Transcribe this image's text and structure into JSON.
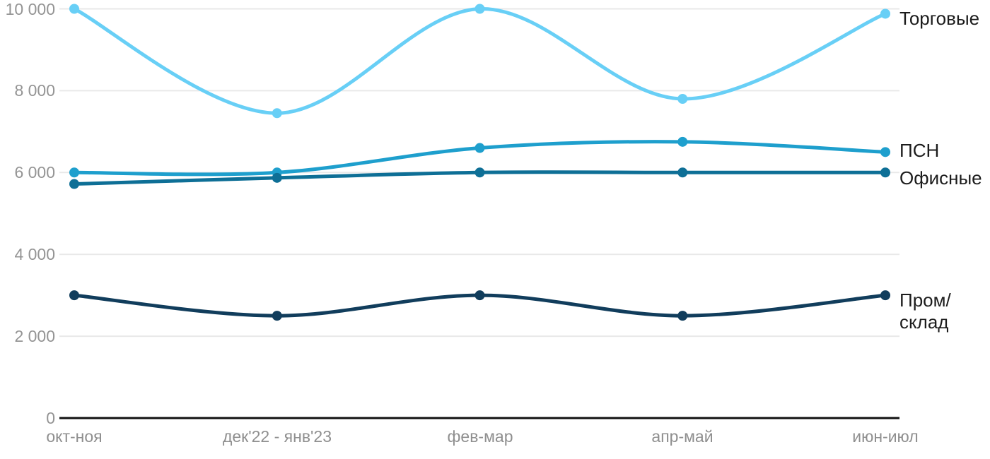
{
  "chart_data": {
    "type": "line",
    "title": "",
    "xlabel": "",
    "ylabel": "",
    "categories": [
      "окт-ноя",
      "дек'22 - янв'23",
      "фев-мар",
      "апр-май",
      "июн-июл"
    ],
    "ytick_labels": [
      "10 000",
      "8 000",
      "6 000",
      "4 000",
      "2 000",
      "0"
    ],
    "ytick_values": [
      10000,
      8000,
      6000,
      4000,
      2000,
      0
    ],
    "ylim": [
      0,
      10000
    ],
    "grid": "horizontal-on",
    "legend_position": "right-edge-inline-labels",
    "curve": "smooth",
    "series": [
      {
        "id": "torgovye",
        "name": "Торговые",
        "label": "Торговые",
        "color": "#68CFF6",
        "values": [
          10000,
          7450,
          10000,
          7800,
          9880
        ]
      },
      {
        "id": "psn",
        "name": "ПСН",
        "label": "ПСН",
        "color": "#1E9FCD",
        "values": [
          6000,
          6000,
          6600,
          6750,
          6500
        ]
      },
      {
        "id": "ofisnye",
        "name": "Офисные",
        "label": "Офисные",
        "color": "#0E6F96",
        "values": [
          5720,
          5870,
          6000,
          6000,
          6000
        ]
      },
      {
        "id": "prom-sklad",
        "name": "Пром/склад",
        "label": "Пром/\nсклад",
        "color": "#113D5C",
        "values": [
          3000,
          2500,
          3000,
          2500,
          3000
        ]
      }
    ],
    "colors": {
      "gridline": "#E9E9E9",
      "zero_axis": "#111111",
      "ytick_text": "#949494",
      "xtick_text": "#8F8F8F",
      "series_label_text": "#1C1C1C",
      "background": "#FFFFFF"
    }
  }
}
